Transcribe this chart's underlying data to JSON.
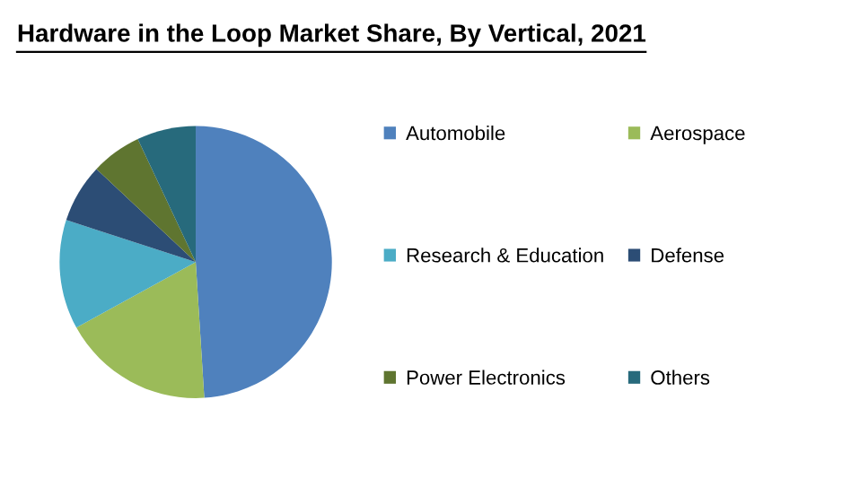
{
  "chart_data": {
    "type": "pie",
    "title": "Hardware in the Loop Market Share, By Vertical, 2021",
    "categories": [
      "Automobile",
      "Aerospace",
      "Research & Education",
      "Defense",
      "Power Electronics",
      "Others"
    ],
    "values": [
      49,
      18,
      13,
      7,
      6,
      7
    ],
    "colors": [
      "#4f81bd",
      "#9bbb59",
      "#4bacc6",
      "#2c4d75",
      "#5f7530",
      "#276a7c"
    ],
    "legend": "right"
  }
}
